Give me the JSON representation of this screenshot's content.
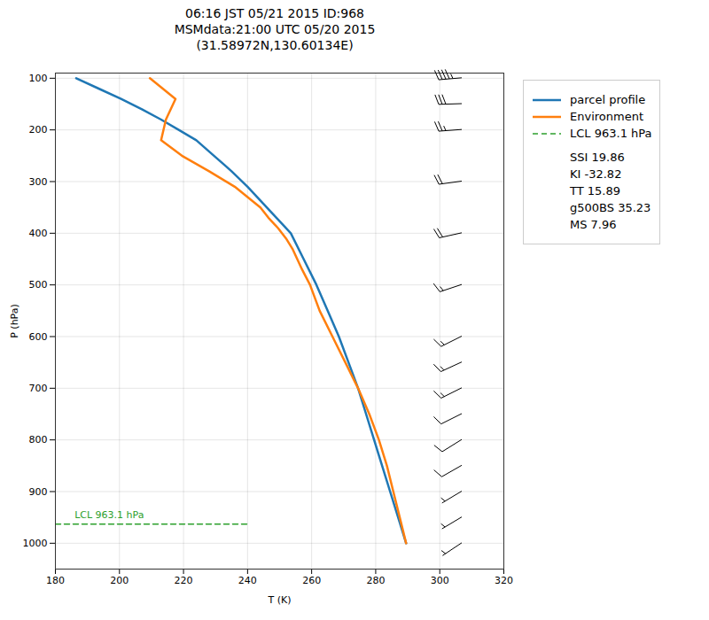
{
  "chart_data": {
    "type": "line",
    "title": "06:16 JST 05/21 2015  ID:968\nMSMdata:21:00 UTC 05/20 2015\n(31.58972N,130.60134E)",
    "xlabel": "T (K)",
    "ylabel": "P (hPa)",
    "xlim": [
      180,
      320
    ],
    "ylim": [
      1050,
      90
    ],
    "xticks": [
      180,
      200,
      220,
      240,
      260,
      280,
      300,
      320
    ],
    "yticks": [
      100,
      200,
      300,
      400,
      500,
      600,
      700,
      800,
      900,
      1000
    ],
    "grid": true,
    "legend": "right",
    "series": [
      {
        "name": "parcel profile",
        "color": "#1f77b4",
        "line_style": "solid",
        "x": [
          289.5,
          287.0,
          284.5,
          282.0,
          279.5,
          277.0,
          274.5,
          271.5,
          268.5,
          265.0,
          261.5,
          257.5,
          253.5,
          249.0,
          244.5,
          240.0,
          235.0,
          229.5,
          224.0,
          218.5,
          213.0,
          207.0,
          200.5,
          193.5,
          186.5
        ],
        "values": [
          1000,
          950,
          900,
          850,
          800,
          750,
          700,
          650,
          600,
          550,
          500,
          450,
          400,
          370,
          340,
          310,
          280,
          250,
          220,
          200,
          180,
          160,
          140,
          120,
          100
        ]
      },
      {
        "name": "Environment",
        "color": "#ff7f0e",
        "line_style": "solid",
        "x": [
          289.5,
          287.5,
          285.5,
          283.5,
          281.0,
          278.0,
          274.5,
          270.5,
          266.5,
          262.5,
          259.5,
          257.0,
          255.5,
          254.0,
          252.0,
          249.5,
          246.5,
          244.0,
          236.0,
          228.0,
          219.5,
          213.0,
          214.5,
          217.5,
          209.5
        ],
        "values": [
          1000,
          950,
          900,
          850,
          800,
          750,
          700,
          650,
          600,
          550,
          500,
          470,
          450,
          430,
          410,
          390,
          370,
          350,
          310,
          280,
          250,
          220,
          180,
          140,
          100
        ]
      },
      {
        "name": "LCL 963.1 hPa",
        "color": "#2ca02c",
        "line_style": "dashed",
        "x": [
          180,
          240
        ],
        "values": [
          963.1,
          963.1
        ]
      }
    ],
    "annotations": [
      {
        "text": "LCL 963.1 hPa",
        "x": 186,
        "y": 963.1,
        "color": "#2ca02c"
      }
    ],
    "stats": [
      "SSI 19.86",
      "KI -32.82",
      "TT 15.89",
      "g500BS 35.23",
      "MS 7.96"
    ],
    "wind_barbs": {
      "x": 307,
      "pressures": [
        1000,
        950,
        900,
        850,
        800,
        750,
        700,
        650,
        600,
        500,
        400,
        300,
        200,
        150,
        100
      ],
      "u": [
        3,
        5,
        5,
        7,
        8,
        10,
        12,
        13,
        14,
        15,
        18,
        22,
        27,
        32,
        47
      ],
      "v": [
        2,
        3,
        3,
        4,
        5,
        5,
        6,
        6,
        7,
        5,
        4,
        3,
        2,
        1,
        4
      ]
    }
  }
}
